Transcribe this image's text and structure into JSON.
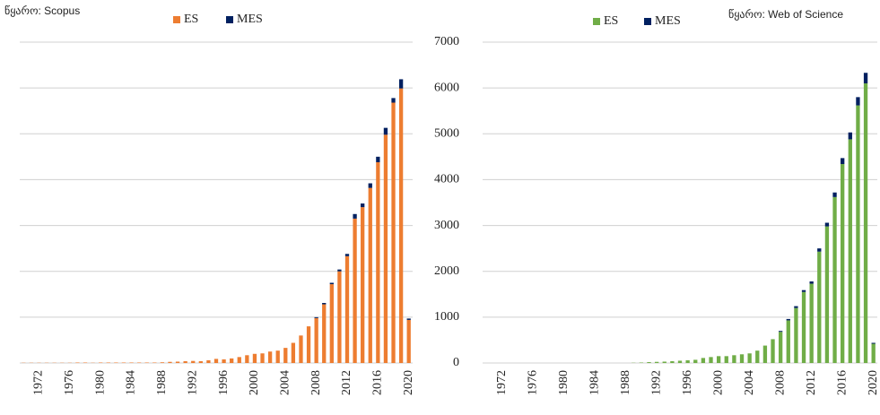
{
  "chart_data": [
    {
      "type": "bar",
      "stacked": true,
      "source": "წყარო: Scopus",
      "categories": [
        null,
        null,
        "1972",
        null,
        null,
        null,
        "1976",
        null,
        null,
        null,
        "1980",
        null,
        null,
        null,
        "1984",
        null,
        null,
        null,
        "1988",
        null,
        null,
        null,
        "1992",
        null,
        null,
        null,
        "1996",
        null,
        null,
        null,
        "2000",
        null,
        null,
        null,
        "2004",
        null,
        null,
        null,
        "2008",
        null,
        null,
        null,
        "2012",
        null,
        null,
        null,
        "2016",
        null,
        null,
        null,
        "2020"
      ],
      "series": [
        {
          "name": "ES",
          "color": "#ed7d31",
          "values": [
            5,
            5,
            5,
            5,
            5,
            5,
            5,
            10,
            10,
            5,
            10,
            10,
            10,
            10,
            10,
            10,
            10,
            10,
            15,
            25,
            30,
            40,
            45,
            40,
            60,
            90,
            80,
            100,
            130,
            170,
            200,
            210,
            250,
            270,
            330,
            440,
            600,
            800,
            980,
            1280,
            1720,
            2000,
            2330,
            3150,
            3400,
            3820,
            4380,
            4980,
            5680,
            5990,
            940
          ]
        },
        {
          "name": "MES",
          "color": "#002060",
          "values": [
            0,
            0,
            0,
            0,
            0,
            0,
            0,
            0,
            0,
            0,
            0,
            0,
            0,
            0,
            0,
            0,
            0,
            0,
            0,
            0,
            0,
            0,
            0,
            0,
            0,
            0,
            0,
            0,
            0,
            0,
            0,
            0,
            0,
            0,
            0,
            0,
            0,
            0,
            20,
            30,
            30,
            40,
            50,
            100,
            80,
            100,
            120,
            150,
            100,
            200,
            30
          ]
        }
      ],
      "ylim": [
        0,
        7000
      ],
      "yticks": [
        0,
        1000,
        2000,
        3000,
        4000,
        5000,
        6000,
        7000
      ],
      "grid": true
    },
    {
      "type": "bar",
      "stacked": true,
      "source": "წყარო: Web of Science",
      "categories": [
        null,
        null,
        "1972",
        null,
        null,
        null,
        "1976",
        null,
        null,
        null,
        "1980",
        null,
        null,
        null,
        "1984",
        null,
        null,
        null,
        "1988",
        null,
        null,
        null,
        "1992",
        null,
        null,
        null,
        "1996",
        null,
        null,
        null,
        "2000",
        null,
        null,
        null,
        "2004",
        null,
        null,
        null,
        "2008",
        null,
        null,
        null,
        "2012",
        null,
        null,
        null,
        "2016",
        null,
        null,
        null,
        "2020"
      ],
      "series": [
        {
          "name": "ES",
          "color": "#70ad47",
          "values": [
            0,
            0,
            0,
            0,
            0,
            0,
            0,
            0,
            0,
            0,
            0,
            0,
            0,
            0,
            0,
            0,
            0,
            0,
            0,
            5,
            10,
            20,
            25,
            30,
            40,
            50,
            60,
            70,
            110,
            130,
            150,
            150,
            170,
            190,
            210,
            270,
            380,
            520,
            680,
            930,
            1200,
            1550,
            1730,
            2430,
            2980,
            3620,
            4340,
            4880,
            5620,
            6100,
            420
          ]
        },
        {
          "name": "MES",
          "color": "#002060",
          "values": [
            0,
            0,
            0,
            0,
            0,
            0,
            0,
            0,
            0,
            0,
            0,
            0,
            0,
            0,
            0,
            0,
            0,
            0,
            0,
            0,
            0,
            0,
            0,
            0,
            0,
            0,
            0,
            0,
            0,
            0,
            0,
            0,
            0,
            0,
            0,
            0,
            0,
            0,
            20,
            30,
            40,
            40,
            50,
            70,
            80,
            100,
            130,
            150,
            180,
            230,
            20
          ]
        }
      ],
      "ylim": [
        0,
        7000
      ],
      "yticks": [
        0,
        1000,
        2000,
        3000,
        4000,
        5000,
        6000,
        7000
      ],
      "grid": true
    }
  ]
}
